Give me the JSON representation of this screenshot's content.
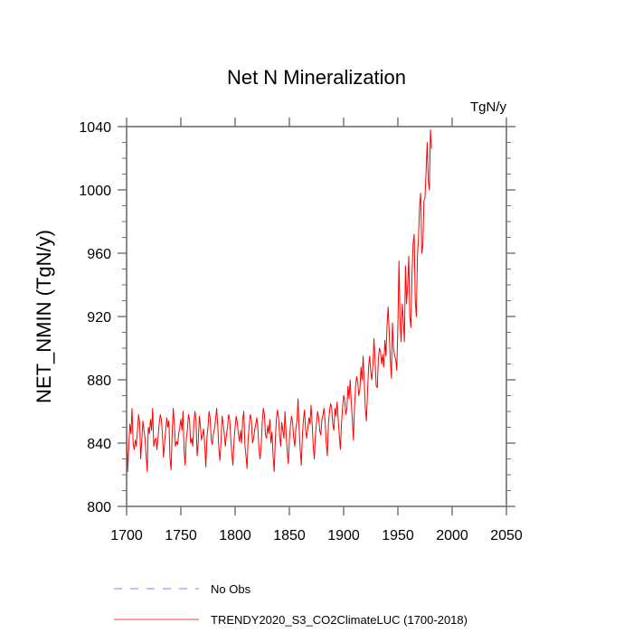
{
  "chart_data": {
    "type": "line",
    "title": "Net N Mineralization",
    "units_label": "TgN/y",
    "xlabel": "",
    "ylabel": "NET_NMIN  (TgN/y)",
    "xlim": [
      1700,
      2050
    ],
    "ylim": [
      800,
      1040
    ],
    "x_ticks": [
      1700,
      1750,
      1800,
      1850,
      1900,
      1950,
      2000,
      2050
    ],
    "x_tick_labels": [
      "1700",
      "1750",
      "1800",
      "1850",
      "1900",
      "1950",
      "2000",
      "2050"
    ],
    "y_ticks": [
      800,
      840,
      880,
      920,
      960,
      1000,
      1040
    ],
    "y_tick_labels": [
      "800",
      "840",
      "880",
      "920",
      "960",
      "1000",
      "1040"
    ],
    "y_minor_step": 10,
    "grid": false,
    "legend": {
      "placement": "bottom",
      "entries": [
        {
          "label": "No Obs",
          "color": "#8080ff",
          "style": "dashed"
        },
        {
          "label": "TRENDY2020_S3_CO2ClimateLUC (1700-2018)",
          "color": "#ff0000",
          "style": "solid"
        }
      ]
    },
    "series": [
      {
        "name": "TRENDY2020_S3_CO2ClimateLUC (1700-2018)",
        "color": "#ff0000",
        "x_start": 1700,
        "x_step": 1,
        "values": [
          853,
          822,
          838,
          852,
          846,
          862,
          840,
          836,
          842,
          838,
          848,
          858,
          853,
          830,
          842,
          854,
          848,
          843,
          832,
          822,
          850,
          846,
          855,
          848,
          862,
          838,
          842,
          843,
          836,
          844,
          852,
          858,
          855,
          846,
          831,
          840,
          848,
          856,
          850,
          854,
          830,
          823,
          846,
          862,
          852,
          838,
          841,
          839,
          846,
          850,
          855,
          848,
          860,
          835,
          826,
          843,
          848,
          858,
          855,
          840,
          843,
          838,
          853,
          860,
          854,
          832,
          840,
          857,
          851,
          842,
          845,
          849,
          838,
          825,
          843,
          850,
          860,
          856,
          842,
          839,
          846,
          849,
          855,
          862,
          851,
          837,
          829,
          841,
          857,
          852,
          846,
          838,
          845,
          850,
          858,
          855,
          843,
          833,
          826,
          842,
          850,
          857,
          853,
          846,
          841,
          848,
          840,
          855,
          860,
          839,
          832,
          824,
          843,
          851,
          858,
          855,
          840,
          843,
          848,
          852,
          856,
          849,
          836,
          830,
          838,
          853,
          862,
          858,
          845,
          843,
          851,
          846,
          855,
          840,
          847,
          832,
          822,
          841,
          855,
          861,
          856,
          845,
          838,
          853,
          848,
          843,
          860,
          846,
          835,
          827,
          842,
          851,
          857,
          853,
          843,
          838,
          849,
          854,
          868,
          849,
          836,
          826,
          845,
          855,
          861,
          848,
          843,
          850,
          856,
          852,
          864,
          852,
          838,
          830,
          845,
          853,
          860,
          856,
          848,
          845,
          855,
          858,
          862,
          853,
          840,
          832,
          852,
          860,
          865,
          862,
          852,
          848,
          862,
          857,
          866,
          855,
          845,
          836,
          852,
          862,
          870,
          867,
          858,
          862,
          876,
          868,
          880,
          866,
          855,
          842,
          862,
          876,
          882,
          878,
          870,
          874,
          888,
          880,
          895,
          878,
          862,
          854,
          872,
          888,
          895,
          885,
          880,
          890,
          906,
          892,
          876,
          875,
          893,
          900,
          898,
          890,
          896,
          888,
          905,
          895,
          914,
          926,
          910,
          893,
          881,
          916,
          900,
          895,
          893,
          886,
          914,
          955,
          918,
          904,
          928,
          918,
          904,
          952,
          928,
          940,
          958,
          920,
          913,
          946,
          966,
          972,
          930,
          920,
          958,
          970,
          990,
          998,
          960,
          965,
          993,
          995,
          1012,
          1030,
          1006,
          1000,
          1038,
          1026
        ]
      }
    ]
  }
}
